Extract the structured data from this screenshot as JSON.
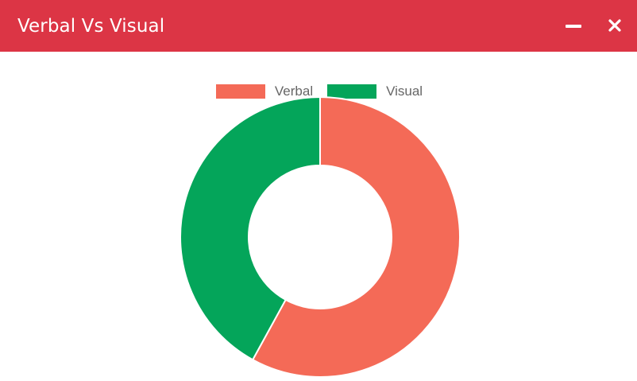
{
  "window": {
    "title": "Verbal Vs Visual",
    "header_color": "#dc3545"
  },
  "controls": {
    "minimize_icon": "minus-icon",
    "close_icon": "close-icon"
  },
  "chart_data": {
    "type": "pie",
    "variant": "doughnut",
    "categories": [
      "Verbal",
      "Visual"
    ],
    "values": [
      58,
      42
    ],
    "colors": [
      "#f46a57",
      "#04a55a"
    ],
    "legend": "top-center",
    "title": ""
  }
}
